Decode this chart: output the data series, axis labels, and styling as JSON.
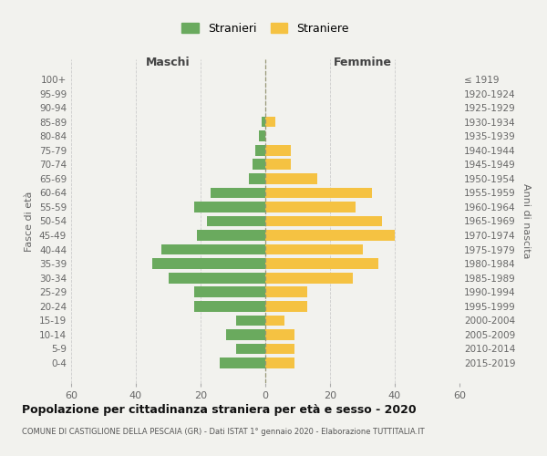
{
  "age_groups": [
    "0-4",
    "5-9",
    "10-14",
    "15-19",
    "20-24",
    "25-29",
    "30-34",
    "35-39",
    "40-44",
    "45-49",
    "50-54",
    "55-59",
    "60-64",
    "65-69",
    "70-74",
    "75-79",
    "80-84",
    "85-89",
    "90-94",
    "95-99",
    "100+"
  ],
  "birth_years": [
    "2015-2019",
    "2010-2014",
    "2005-2009",
    "2000-2004",
    "1995-1999",
    "1990-1994",
    "1985-1989",
    "1980-1984",
    "1975-1979",
    "1970-1974",
    "1965-1969",
    "1960-1964",
    "1955-1959",
    "1950-1954",
    "1945-1949",
    "1940-1944",
    "1935-1939",
    "1930-1934",
    "1925-1929",
    "1920-1924",
    "≤ 1919"
  ],
  "males": [
    14,
    9,
    12,
    9,
    22,
    22,
    30,
    35,
    32,
    21,
    18,
    22,
    17,
    5,
    4,
    3,
    2,
    1,
    0,
    0,
    0
  ],
  "females": [
    9,
    9,
    9,
    6,
    13,
    13,
    27,
    35,
    30,
    40,
    36,
    28,
    33,
    16,
    8,
    8,
    0,
    3,
    0,
    0,
    0
  ],
  "male_color": "#6aaa5e",
  "female_color": "#f5c242",
  "background_color": "#f2f2ee",
  "grid_color": "#cccccc",
  "bar_height": 0.75,
  "xlim": 60,
  "title": "Popolazione per cittadinanza straniera per età e sesso - 2020",
  "subtitle": "COMUNE DI CASTIGLIONE DELLA PESCAIA (GR) - Dati ISTAT 1° gennaio 2020 - Elaborazione TUTTITALIA.IT",
  "ylabel_left": "Fasce di età",
  "ylabel_right": "Anni di nascita",
  "xlabel_left": "Maschi",
  "xlabel_right": "Femmine",
  "legend_stranieri": "Stranieri",
  "legend_straniere": "Straniere"
}
